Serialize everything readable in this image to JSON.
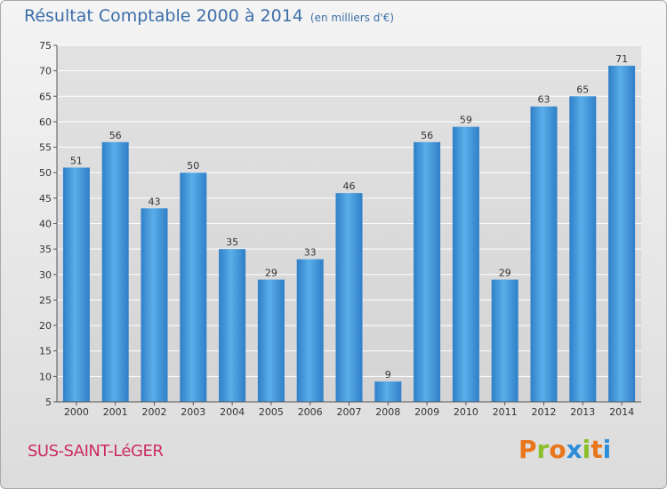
{
  "header": {
    "title": "Résultat Comptable 2000 à 2014",
    "subtitle": "(en milliers d'€)"
  },
  "footer": {
    "town": "SUS-SAINT-LéGER",
    "logo_letters": [
      "P",
      "r",
      "o",
      "x",
      "i",
      "t",
      "i"
    ],
    "logo_colors": [
      "#e8761c",
      "#8bbf2a",
      "#e8761c",
      "#2d8fd8",
      "#8bbf2a",
      "#e8761c",
      "#2d8fd8"
    ]
  },
  "chart_data": {
    "type": "bar",
    "title": "Résultat Comptable 2000 à 2014",
    "subtitle": "(en milliers d'€)",
    "categories": [
      "2000",
      "2001",
      "2002",
      "2003",
      "2004",
      "2005",
      "2006",
      "2007",
      "2008",
      "2009",
      "2010",
      "2011",
      "2012",
      "2013",
      "2014"
    ],
    "values": [
      51,
      56,
      43,
      50,
      35,
      29,
      33,
      46,
      9,
      56,
      59,
      29,
      63,
      65,
      71
    ],
    "ylim": [
      5,
      75
    ],
    "yticks": [
      5,
      10,
      15,
      20,
      25,
      30,
      35,
      40,
      45,
      50,
      55,
      60,
      65,
      70,
      75
    ],
    "grid": true,
    "bar_color": "#3f8fd6"
  }
}
